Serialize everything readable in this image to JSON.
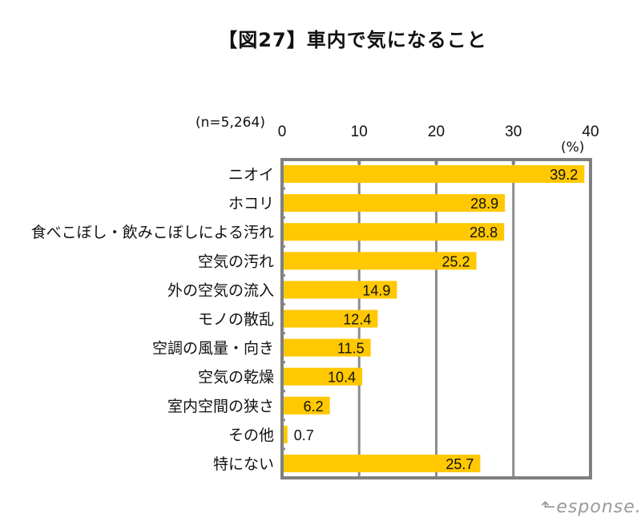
{
  "chart_data": {
    "type": "bar",
    "orientation": "horizontal",
    "title": "【図27】車内で気になること",
    "sample_note": "(n=5,264)",
    "unit_label": "(%)",
    "xlabel": "",
    "ylabel": "",
    "xlim": [
      0,
      40
    ],
    "x_ticks": [
      0,
      10,
      20,
      30,
      40
    ],
    "grid": true,
    "bar_color": "#FFC800",
    "categories": [
      "ニオイ",
      "ホコリ",
      "食べこぼし・飲みこぼしによる汚れ",
      "空気の汚れ",
      "外の空気の流入",
      "モノの散乱",
      "空調の風量・向き",
      "空気の乾燥",
      "室内空間の狭さ",
      "その他",
      "特にない"
    ],
    "values": [
      39.2,
      28.9,
      28.8,
      25.2,
      14.9,
      12.4,
      11.5,
      10.4,
      6.2,
      0.7,
      25.7
    ],
    "data_labels": [
      "39.2",
      "28.9",
      "28.8",
      "25.2",
      "14.9",
      "12.4",
      "11.5",
      "10.4",
      "6.2",
      "0.7",
      "25.7"
    ]
  },
  "watermark": {
    "text": "esponse.",
    "brand": "Response"
  }
}
